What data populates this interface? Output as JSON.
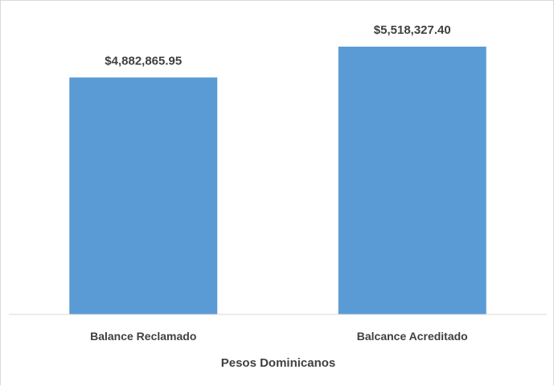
{
  "chart_data": {
    "type": "bar",
    "categories": [
      "Balance Reclamado",
      "Balcance Acreditado"
    ],
    "values": [
      4882865.95,
      5518327.4
    ],
    "data_labels": [
      "$4,882,865.95",
      "$5,518,327.40"
    ],
    "title": "",
    "xlabel": "Pesos Dominicanos",
    "ylabel": "",
    "ylim": [
      0,
      5800000
    ],
    "grid": false,
    "legend": "none",
    "bar_color": "#5b9bd5",
    "axis_color": "#d9d9d9"
  }
}
